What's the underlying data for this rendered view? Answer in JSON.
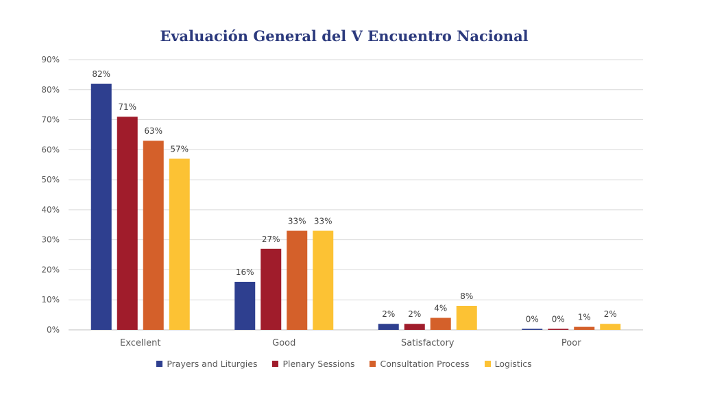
{
  "chart_data": {
    "type": "bar",
    "title": "Evaluación General del V Encuentro Nacional",
    "categories": [
      "Excellent",
      "Good",
      "Satisfactory",
      "Poor"
    ],
    "series": [
      {
        "name": "Prayers and Liturgies",
        "color": "#2e3f8f",
        "values": [
          82,
          16,
          2,
          0
        ],
        "labels": [
          "82%",
          "16%",
          "2%",
          "0%"
        ]
      },
      {
        "name": "Plenary Sessions",
        "color": "#a01c2b",
        "values": [
          71,
          27,
          2,
          0
        ],
        "labels": [
          "71%",
          "27%",
          "2%",
          "0%"
        ]
      },
      {
        "name": "Consultation Process",
        "color": "#d4602a",
        "values": [
          63,
          33,
          4,
          1
        ],
        "labels": [
          "63%",
          "33%",
          "4%",
          "1%"
        ]
      },
      {
        "name": "Logistics",
        "color": "#fcc234",
        "values": [
          57,
          33,
          8,
          2
        ],
        "labels": [
          "57%",
          "33%",
          "8%",
          "2%"
        ]
      }
    ],
    "ylim": [
      0,
      90
    ],
    "yticks": [
      0,
      10,
      20,
      30,
      40,
      50,
      60,
      70,
      80,
      90
    ],
    "ytick_labels": [
      "0%",
      "10%",
      "20%",
      "30%",
      "40%",
      "50%",
      "60%",
      "70%",
      "80%",
      "90%"
    ],
    "xlabel": "",
    "ylabel": "",
    "grid": true,
    "legend_position": "bottom"
  }
}
